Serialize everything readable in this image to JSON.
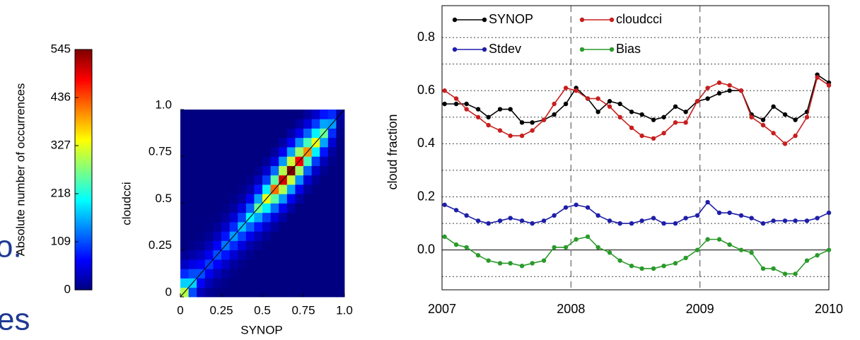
{
  "slide_fragments": [
    "o.",
    "es"
  ],
  "chart_data": [
    {
      "type": "heatmap",
      "colorbar_label": "Absolute number of occurrences",
      "colormap": "jet",
      "zlim": [
        0,
        545
      ],
      "zticks": [
        0,
        109,
        218,
        327,
        436,
        545
      ],
      "xlabel": "SYNOP",
      "ylabel": "cloudcci",
      "xlim": [
        0,
        1
      ],
      "ylim": [
        0,
        1
      ],
      "xticks": [
        0,
        0.25,
        0.5,
        0.75,
        {
          "value": 1,
          "label": "1.0"
        }
      ],
      "yticks": [
        0,
        0.25,
        0.5,
        0.75,
        {
          "value": 1,
          "label": "1.0"
        }
      ],
      "diagonal": true,
      "z": [
        [
          300,
          108,
          33,
          12,
          4,
          0,
          0,
          0,
          0,
          0,
          0,
          0,
          0,
          0,
          0,
          0,
          0,
          0,
          0,
          0
        ],
        [
          180,
          180,
          66,
          30,
          13,
          5,
          0,
          0,
          0,
          0,
          0,
          0,
          0,
          0,
          0,
          0,
          0,
          0,
          0,
          0
        ],
        [
          90,
          108,
          110,
          60,
          33,
          16,
          6,
          0,
          0,
          0,
          0,
          0,
          0,
          0,
          0,
          0,
          0,
          0,
          0,
          0
        ],
        [
          36,
          54,
          66,
          100,
          66,
          39,
          18,
          7,
          0,
          0,
          0,
          0,
          0,
          0,
          0,
          0,
          0,
          0,
          0,
          0
        ],
        [
          12,
          22,
          33,
          60,
          110,
          78,
          45,
          20,
          8,
          0,
          0,
          0,
          0,
          0,
          0,
          0,
          0,
          0,
          0,
          0
        ],
        [
          0,
          7,
          13,
          30,
          66,
          130,
          90,
          51,
          24,
          10,
          0,
          0,
          0,
          0,
          0,
          0,
          0,
          0,
          0,
          0
        ],
        [
          0,
          0,
          4,
          12,
          33,
          78,
          150,
          102,
          60,
          31,
          13,
          0,
          0,
          0,
          0,
          0,
          0,
          0,
          0,
          0
        ],
        [
          0,
          0,
          0,
          4,
          13,
          39,
          90,
          170,
          120,
          78,
          40,
          17,
          0,
          0,
          0,
          0,
          0,
          0,
          0,
          0
        ],
        [
          0,
          0,
          0,
          0,
          4,
          16,
          45,
          102,
          200,
          156,
          99,
          50,
          20,
          0,
          0,
          0,
          0,
          0,
          0,
          0
        ],
        [
          0,
          0,
          0,
          0,
          0,
          5,
          18,
          51,
          120,
          260,
          198,
          126,
          60,
          21,
          0,
          0,
          0,
          0,
          0,
          0
        ],
        [
          0,
          0,
          0,
          0,
          0,
          0,
          6,
          20,
          60,
          156,
          330,
          252,
          150,
          62,
          19,
          0,
          0,
          0,
          0,
          0
        ],
        [
          0,
          0,
          0,
          0,
          0,
          0,
          0,
          7,
          24,
          78,
          198,
          420,
          300,
          156,
          58,
          16,
          0,
          0,
          0,
          0
        ],
        [
          0,
          0,
          0,
          0,
          0,
          0,
          0,
          0,
          8,
          31,
          99,
          252,
          500,
          312,
          144,
          48,
          13,
          0,
          0,
          0
        ],
        [
          0,
          0,
          0,
          0,
          0,
          0,
          0,
          0,
          0,
          10,
          40,
          126,
          300,
          545,
          288,
          120,
          40,
          10,
          0,
          0
        ],
        [
          0,
          0,
          0,
          0,
          0,
          0,
          0,
          0,
          0,
          0,
          13,
          50,
          150,
          312,
          480,
          240,
          99,
          31,
          6,
          0
        ],
        [
          0,
          0,
          0,
          0,
          0,
          0,
          0,
          0,
          0,
          0,
          0,
          17,
          60,
          156,
          288,
          400,
          198,
          78,
          18,
          1
        ],
        [
          0,
          0,
          0,
          0,
          0,
          0,
          0,
          0,
          0,
          0,
          0,
          0,
          20,
          62,
          144,
          240,
          330,
          156,
          45,
          2
        ],
        [
          0,
          0,
          0,
          0,
          0,
          0,
          0,
          0,
          0,
          0,
          0,
          0,
          0,
          21,
          58,
          120,
          198,
          260,
          90,
          6
        ],
        [
          0,
          0,
          0,
          0,
          0,
          0,
          0,
          0,
          0,
          0,
          0,
          0,
          0,
          0,
          19,
          48,
          99,
          156,
          150,
          12
        ],
        [
          0,
          0,
          0,
          0,
          0,
          0,
          0,
          0,
          0,
          0,
          0,
          0,
          0,
          0,
          0,
          16,
          40,
          78,
          90,
          20
        ]
      ]
    },
    {
      "type": "line",
      "ylabel": "cloud fraction",
      "xlim": [
        2007,
        2010
      ],
      "xticks": [
        2007,
        2008,
        2009,
        2010
      ],
      "ylim": [
        -0.15,
        0.92
      ],
      "yticks": [
        {
          "value": 0,
          "label": "0.0"
        },
        0.2,
        0.4,
        0.6,
        0.8
      ],
      "minor_yticks": [
        -0.1,
        0.1,
        0.3,
        0.5,
        0.7
      ],
      "grid": true,
      "zero_line": true,
      "legend": "top",
      "x": [
        2007.02,
        2007.11,
        2007.19,
        2007.28,
        2007.36,
        2007.45,
        2007.53,
        2007.62,
        2007.7,
        2007.79,
        2007.87,
        2007.96,
        2008.04,
        2008.13,
        2008.21,
        2008.3,
        2008.38,
        2008.47,
        2008.55,
        2008.64,
        2008.72,
        2008.81,
        2008.89,
        2008.98,
        2009.06,
        2009.15,
        2009.23,
        2009.32,
        2009.4,
        2009.49,
        2009.57,
        2009.66,
        2009.74,
        2009.83,
        2009.91,
        2010.0
      ],
      "series": [
        {
          "name": "SYNOP",
          "color": "#000000",
          "values": [
            0.55,
            0.55,
            0.55,
            0.53,
            0.5,
            0.53,
            0.53,
            0.48,
            0.48,
            0.49,
            0.51,
            0.55,
            0.61,
            0.57,
            0.52,
            0.56,
            0.55,
            0.52,
            0.51,
            0.49,
            0.5,
            0.54,
            0.52,
            0.56,
            0.57,
            0.59,
            0.6,
            0.6,
            0.51,
            0.49,
            0.54,
            0.51,
            0.49,
            0.52,
            0.66,
            0.63
          ]
        },
        {
          "name": "cloudcci",
          "color": "#c81e1e",
          "values": [
            0.6,
            0.57,
            0.53,
            0.5,
            0.47,
            0.45,
            0.43,
            0.43,
            0.45,
            0.49,
            0.55,
            0.61,
            0.6,
            0.57,
            0.57,
            0.54,
            0.5,
            0.46,
            0.43,
            0.42,
            0.44,
            0.48,
            0.48,
            0.56,
            0.61,
            0.63,
            0.62,
            0.6,
            0.5,
            0.47,
            0.44,
            0.4,
            0.43,
            0.5,
            0.65,
            0.62
          ]
        },
        {
          "name": "Stdev",
          "color": "#1e1ea8",
          "values": [
            0.17,
            0.15,
            0.13,
            0.11,
            0.1,
            0.11,
            0.12,
            0.11,
            0.1,
            0.11,
            0.13,
            0.16,
            0.17,
            0.16,
            0.13,
            0.11,
            0.1,
            0.1,
            0.11,
            0.12,
            0.1,
            0.1,
            0.12,
            0.13,
            0.18,
            0.14,
            0.14,
            0.13,
            0.12,
            0.1,
            0.11,
            0.11,
            0.11,
            0.11,
            0.12,
            0.14
          ]
        },
        {
          "name": "Bias",
          "color": "#2a9a2a",
          "values": [
            0.05,
            0.02,
            0.01,
            -0.02,
            -0.04,
            -0.05,
            -0.05,
            -0.06,
            -0.05,
            -0.04,
            0.01,
            0.01,
            0.04,
            0.05,
            0.01,
            -0.01,
            -0.04,
            -0.06,
            -0.07,
            -0.07,
            -0.06,
            -0.05,
            -0.03,
            0.0,
            0.04,
            0.04,
            0.02,
            0.0,
            -0.01,
            -0.07,
            -0.07,
            -0.09,
            -0.09,
            -0.04,
            -0.02,
            0.0
          ]
        }
      ]
    }
  ]
}
